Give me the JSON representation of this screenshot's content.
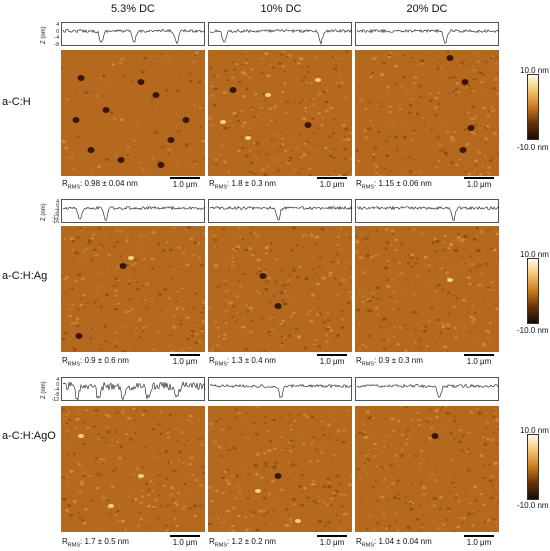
{
  "columns": [
    "5.3% DC",
    "10% DC",
    "20% DC"
  ],
  "rows": [
    {
      "label": "a-C:H",
      "y_axis_label": "Z (nm)",
      "y_ticks": [
        "4",
        "0",
        "-4",
        "-8"
      ],
      "colorbar": {
        "max": "10.0 nm",
        "min": "-10.0 nm"
      },
      "panels": [
        {
          "rms_value": ": 0.98 ± 0.04 nm",
          "scale": "1.0 μm"
        },
        {
          "rms_value": ": 1.8 ± 0.3 nm",
          "scale": "1.0 μm"
        },
        {
          "rms_value": ": 1.15 ± 0.06 nm",
          "scale": "1.0 μm"
        }
      ]
    },
    {
      "label": "a-C:H:Ag",
      "y_axis_label": "Z (nm)",
      "y_ticks": [
        "4",
        "0",
        "-4",
        "-8",
        "-12",
        "-16"
      ],
      "colorbar": {
        "max": "10.0 nm",
        "min": "-10.0 nm"
      },
      "panels": [
        {
          "rms_value": ": 0.9 ± 0.6 nm",
          "scale": "1.0 μm"
        },
        {
          "rms_value": ": 1.3 ± 0.4 nm",
          "scale": "1.0 μm"
        },
        {
          "rms_value": ": 0.9 ± 0.3 nm",
          "scale": "1.0 μm"
        }
      ]
    },
    {
      "label": "a-C:H:AgO",
      "y_axis_label": "Z (nm)",
      "y_ticks": [
        "4",
        "0",
        "-4",
        "-8",
        "-12"
      ],
      "colorbar": {
        "max": "10.0 nm",
        "min": "-10.0 nm"
      },
      "panels": [
        {
          "rms_value": ": 1.7 ± 0.5 nm",
          "scale": "1.0 μm"
        },
        {
          "rms_value": ": 1.2 ± 0.2 nm",
          "scale": "1.0 μm"
        },
        {
          "rms_value": ": 1.04 ± 0.04 nm",
          "scale": "1.0 μm"
        }
      ]
    }
  ],
  "rms_symbol": "R",
  "rms_subscript": "RMS",
  "colors": {
    "afm_base": "#b5691f",
    "afm_dark": "#3a1604",
    "afm_light": "#f4d08a",
    "profile_line": "#333333"
  }
}
